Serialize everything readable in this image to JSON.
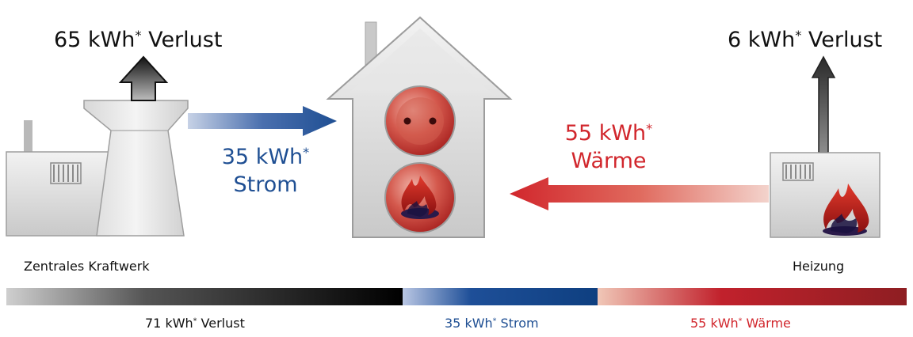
{
  "labels": {
    "plant_loss": {
      "value": "65 kWh",
      "star": "*",
      "suffix": " Verlust"
    },
    "heater_loss": {
      "value": "6 kWh",
      "star": "*",
      "suffix": " Verlust"
    },
    "electricity": {
      "value": "35 kWh",
      "star": "*",
      "word": "Strom"
    },
    "heat": {
      "value": "55 kWh",
      "star": "*",
      "word": "Wärme"
    },
    "plant_name": "Zentrales Kraftwerk",
    "heater_name": "Heizung"
  },
  "legend": {
    "loss": {
      "value": "71 kWh",
      "star": "*",
      "suffix": " Verlust"
    },
    "electricity": {
      "value": "35 kWh",
      "star": "*",
      "suffix": " Strom"
    },
    "heat": {
      "value": "55 kWh",
      "star": "*",
      "suffix": " Wärme"
    }
  },
  "colors": {
    "loss": "#111111",
    "electricity": "#1f4f93",
    "heat": "#c62028",
    "building": "#cfcfcf"
  },
  "icons": [
    "power-plant-icon",
    "house-icon",
    "socket-icon",
    "flame-icon",
    "heater-icon",
    "arrow-icon"
  ]
}
